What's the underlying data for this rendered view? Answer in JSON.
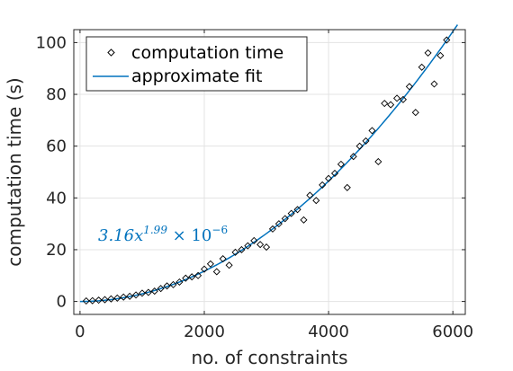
{
  "chart_data": {
    "type": "scatter",
    "xlabel": "no. of constraints",
    "ylabel": "computation time (s)",
    "xlim": [
      -100,
      6200
    ],
    "ylim": [
      -5,
      105
    ],
    "xticks": [
      0,
      2000,
      4000,
      6000
    ],
    "yticks": [
      0,
      20,
      40,
      60,
      80,
      100
    ],
    "grid": true,
    "legend_position": "top-left",
    "series": [
      {
        "name": "computation time",
        "kind": "markers",
        "marker": "diamond",
        "color": "#000000",
        "x": [
          100,
          200,
          300,
          400,
          500,
          600,
          700,
          800,
          900,
          1000,
          1100,
          1200,
          1300,
          1400,
          1500,
          1600,
          1700,
          1800,
          1900,
          2000,
          2100,
          2200,
          2300,
          2400,
          2500,
          2600,
          2700,
          2800,
          2900,
          3000,
          3100,
          3200,
          3300,
          3400,
          3500,
          3600,
          3700,
          3800,
          3900,
          4000,
          4100,
          4200,
          4300,
          4400,
          4500,
          4600,
          4700,
          4800,
          4900,
          5000,
          5100,
          5200,
          5300,
          5400,
          5500,
          5600,
          5700,
          5800,
          5900
        ],
        "y": [
          0.2,
          0.3,
          0.5,
          0.7,
          1.0,
          1.3,
          1.7,
          2.0,
          2.5,
          3.2,
          3.5,
          4.0,
          5.0,
          6.0,
          6.5,
          7.5,
          9.0,
          9.5,
          10.0,
          12.5,
          14.5,
          11.5,
          16.5,
          14.0,
          19.0,
          20.0,
          21.5,
          23.5,
          22.0,
          21.0,
          28.0,
          30.0,
          32.0,
          34.0,
          35.5,
          31.5,
          41.0,
          39.0,
          45.0,
          47.5,
          49.5,
          53.0,
          44.0,
          56.0,
          60.0,
          62.0,
          66.0,
          54.0,
          76.5,
          76.0,
          78.5,
          78.0,
          83.0,
          73.0,
          90.5,
          96.0,
          84.0,
          95.0,
          101.0
        ]
      },
      {
        "name": "approximate fit",
        "kind": "line",
        "color": "#0072bd",
        "coefficient": 3.16e-06,
        "exponent": 1.99
      }
    ],
    "annotation": {
      "coefficient": "3.16",
      "variable": "x",
      "exponent": "1.99",
      "times": " × 10",
      "power": "−6",
      "color": "#0072bd"
    }
  }
}
